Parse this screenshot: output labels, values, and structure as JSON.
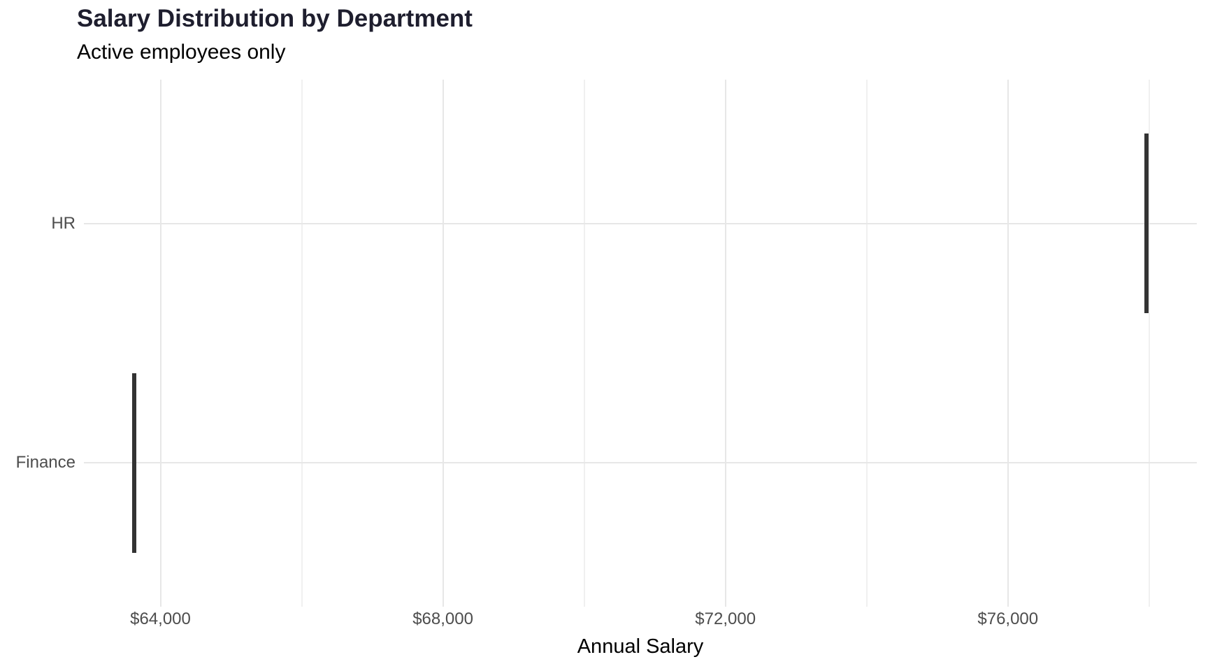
{
  "chart_data": {
    "type": "boxplot",
    "orientation": "horizontal",
    "title": "Salary Distribution by Department",
    "subtitle": "Active employees only",
    "xlabel": "Annual Salary",
    "ylabel": "",
    "legend": "none",
    "categories": [
      {
        "label": "HR",
        "salary": 77960
      },
      {
        "label": "Finance",
        "salary": 63630
      }
    ],
    "note": "Each department's values are identical, so each box collapses to a thin vertical segment at one salary; segment height equals the category box width (0.75 of category spacing)",
    "x_ticks": [
      {
        "value": 64000,
        "label": "$64,000"
      },
      {
        "value": 68000,
        "label": "$68,000"
      },
      {
        "value": 72000,
        "label": "$72,000"
      },
      {
        "value": 76000,
        "label": "$76,000"
      }
    ],
    "x_minor_ticks": [
      66000,
      70000,
      74000,
      78000
    ],
    "x_range": [
      62916,
      78675
    ],
    "grid": {
      "vertical_major": true,
      "vertical_minor": true,
      "horizontal_major": true,
      "horizontal_minor": false
    },
    "colors": {
      "bar": "#333333",
      "grid_major": "#e7e7e7",
      "grid_minor": "#f0f0f0",
      "axis_text": "#4d4d4d",
      "title": "#1e1e2e",
      "subtitle": "#000000",
      "axis_title": "#000000",
      "background": "#ffffff"
    }
  }
}
